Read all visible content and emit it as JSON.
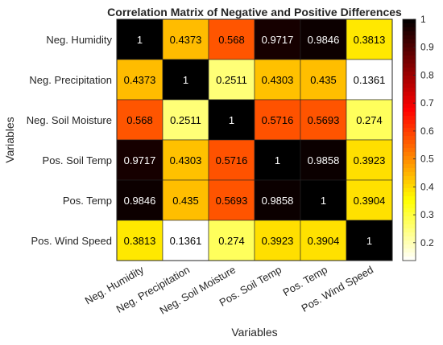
{
  "chart_data": {
    "type": "heatmap",
    "title": "Correlation Matrix of Negative and Positive Differences",
    "xlabel": "Variables",
    "ylabel": "Variables",
    "x_categories": [
      "Neg. Humidity",
      "Neg. Precipitation",
      "Neg. Soil Moisture",
      "Pos. Soil Temp",
      "Pos. Temp",
      "Pos. Wind Speed"
    ],
    "y_categories": [
      "Neg. Humidity",
      "Neg. Precipitation",
      "Neg. Soil Moisture",
      "Pos. Soil Temp",
      "Pos. Temp",
      "Pos. Wind Speed"
    ],
    "values": [
      [
        1,
        0.4373,
        0.568,
        0.9717,
        0.9846,
        0.3813
      ],
      [
        0.4373,
        1,
        0.2511,
        0.4303,
        0.435,
        0.1361
      ],
      [
        0.568,
        0.2511,
        1,
        0.5716,
        0.5693,
        0.274
      ],
      [
        0.9717,
        0.4303,
        0.5716,
        1,
        0.9858,
        0.3923
      ],
      [
        0.9846,
        0.435,
        0.5693,
        0.9858,
        1,
        0.3904
      ],
      [
        0.3813,
        0.1361,
        0.274,
        0.3923,
        0.3904,
        1
      ]
    ],
    "labels": [
      [
        "1",
        "0.4373",
        "0.568",
        "0.9717",
        "0.9846",
        "0.3813"
      ],
      [
        "0.4373",
        "1",
        "0.2511",
        "0.4303",
        "0.435",
        "0.1361"
      ],
      [
        "0.568",
        "0.2511",
        "1",
        "0.5716",
        "0.5693",
        "0.274"
      ],
      [
        "0.9717",
        "0.4303",
        "0.5716",
        "1",
        "0.9858",
        "0.3923"
      ],
      [
        "0.9846",
        "0.435",
        "0.5693",
        "0.9858",
        "1",
        "0.3904"
      ],
      [
        "0.3813",
        "0.1361",
        "0.274",
        "0.3923",
        "0.3904",
        "1"
      ]
    ],
    "colormap": "hot (reversed)",
    "clim": [
      0.1361,
      1
    ],
    "colorbar_ticks": [
      0.2,
      0.3,
      0.4,
      0.5,
      0.6,
      0.7,
      0.8,
      0.9,
      1
    ],
    "colorbar_tick_labels": [
      "0.2",
      "0.3",
      "0.4",
      "0.5",
      "0.6",
      "0.7",
      "0.8",
      "0.9",
      "1"
    ],
    "grid": false,
    "legend": "colorbar right"
  }
}
